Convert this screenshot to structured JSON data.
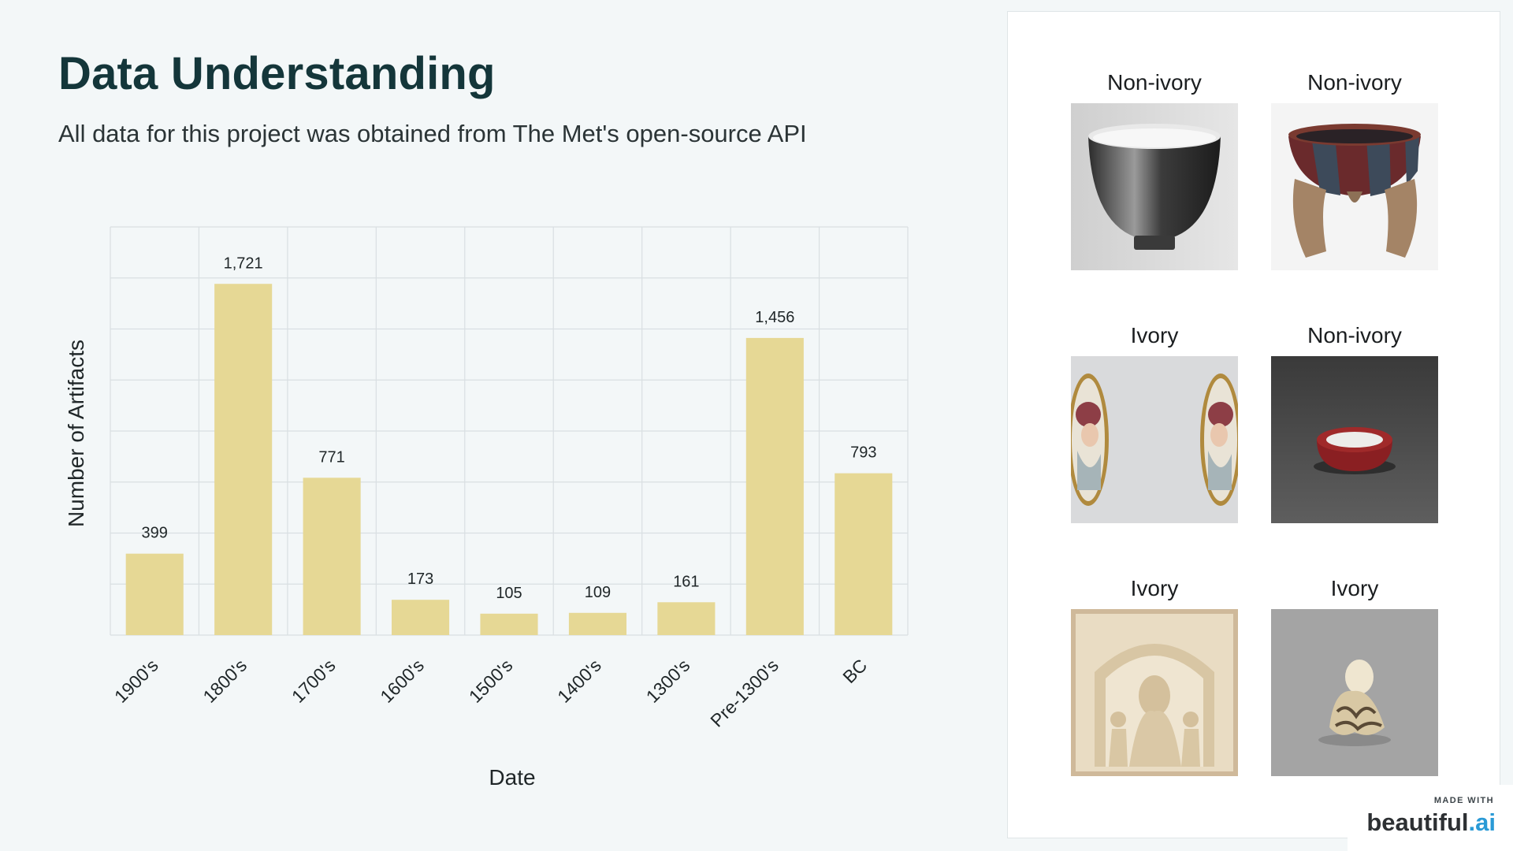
{
  "slide": {
    "title": "Data Understanding",
    "subtitle": "All data for this project was obtained from The Met's open-source API"
  },
  "chart_data": {
    "type": "bar",
    "categories": [
      "1900's",
      "1800's",
      "1700's",
      "1600's",
      "1500's",
      "1400's",
      "1300's",
      "Pre-1300's",
      "BC"
    ],
    "values": [
      399,
      1721,
      771,
      173,
      105,
      109,
      161,
      1456,
      793
    ],
    "value_labels": [
      "399",
      "1,721",
      "771",
      "173",
      "105",
      "109",
      "161",
      "1,456",
      "793"
    ],
    "xlabel": "Date",
    "ylabel": "Number of Artifacts",
    "ylim": [
      0,
      2000
    ],
    "grid": true,
    "legend": "none",
    "bar_color": "#e6d895"
  },
  "gallery": [
    {
      "label": "Non-ivory",
      "image": "black-ceramic-bowl"
    },
    {
      "label": "Non-ivory",
      "image": "striped-tripod-bowl"
    },
    {
      "label": "Ivory",
      "image": "portrait-miniature-pair"
    },
    {
      "label": "Non-ivory",
      "image": "red-glazed-small-bowl"
    },
    {
      "label": "Ivory",
      "image": "carved-ivory-panel"
    },
    {
      "label": "Ivory",
      "image": "ivory-octopus-netsuke"
    }
  ],
  "badge": {
    "made_with": "MADE WITH",
    "brand": "beautiful",
    "brand_suffix": ".ai",
    "brand_suffix_color": "#2a9ad6"
  }
}
